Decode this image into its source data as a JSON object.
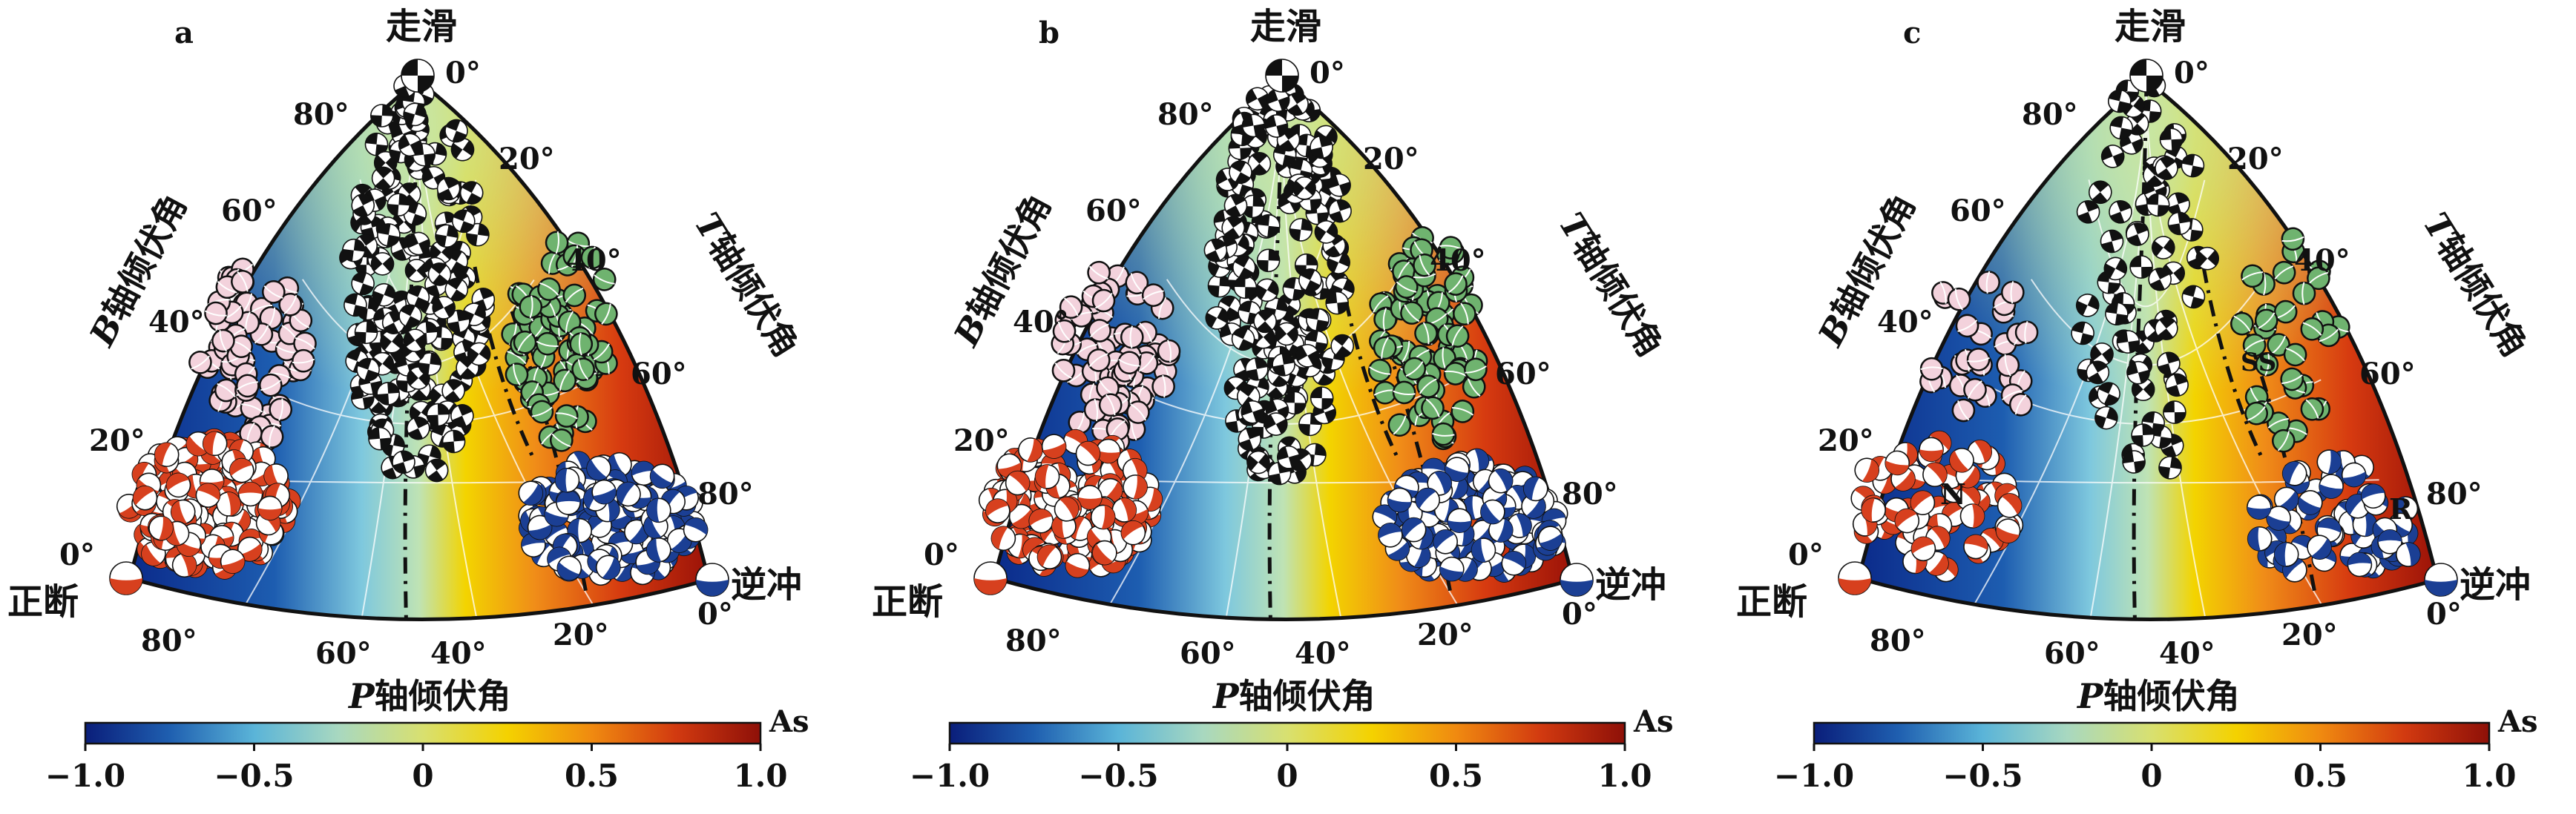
{
  "panels": [
    {
      "letter": "a",
      "density": "dense"
    },
    {
      "letter": "b",
      "density": "dense"
    },
    {
      "letter": "c",
      "density": "sparse"
    }
  ],
  "labels": {
    "strike_slip": "走滑",
    "normal": "正断",
    "reverse": "逆冲",
    "b_axis": "B轴倾伏角",
    "t_axis": "T轴倾伏角",
    "p_axis": "P轴倾伏角",
    "b_axis_letter": "B",
    "t_axis_letter": "T",
    "p_axis_letter": "P",
    "axis_rest": "轴倾伏角"
  },
  "region_labels": {
    "normal": "N",
    "reverse": "R",
    "strike_slip_reverse": "SS"
  },
  "ticks": {
    "top_zero": "0°",
    "b_axis": [
      "80°",
      "60°",
      "40°",
      "20°",
      "0°"
    ],
    "t_axis": [
      "20°",
      "40°",
      "60°",
      "80°"
    ],
    "t_axis_end": "0°",
    "p_axis": [
      "80°",
      "60°",
      "40°",
      "20°"
    ]
  },
  "colorbar": {
    "title": "As",
    "ticks": [
      "−1.0",
      "−0.5",
      "0",
      "0.5",
      "1.0"
    ],
    "min": -1.0,
    "max": 1.0,
    "colors": [
      "#0a1e7a",
      "#1f5fb0",
      "#5ab4d8",
      "#a8d8c0",
      "#d8e070",
      "#f4d200",
      "#f08a10",
      "#d23a10",
      "#8e1008"
    ]
  },
  "mechanism_colors": {
    "normal": "#d7401e",
    "strike_slip": "#111111",
    "reverse": "#1b3f94",
    "normal_strike": "#f3d2dc",
    "strike_reverse": "#6fb36f"
  }
}
